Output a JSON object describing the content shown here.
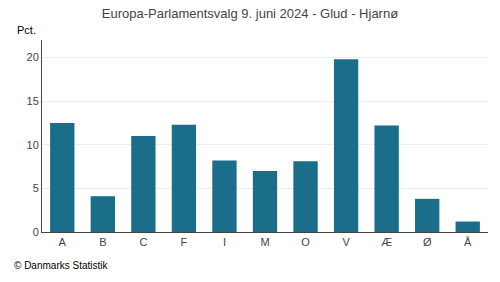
{
  "chart_data": {
    "type": "bar",
    "title": "Europa-Parlamentsvalg 9. juni 2024 - Glud - Hjarnø",
    "categories": [
      "A",
      "B",
      "C",
      "F",
      "I",
      "M",
      "O",
      "V",
      "Æ",
      "Ø",
      "Å"
    ],
    "values": [
      12.5,
      4.1,
      11.0,
      12.3,
      8.2,
      7.0,
      8.1,
      19.8,
      12.2,
      3.8,
      1.2
    ],
    "color": "#1a6e8a",
    "ylabel": "Pct.",
    "annotations": [
      "© Danmarks Statistik"
    ],
    "ylim": [
      0,
      22
    ],
    "yticks": [
      0,
      5,
      10,
      15,
      20
    ],
    "grid": true
  }
}
